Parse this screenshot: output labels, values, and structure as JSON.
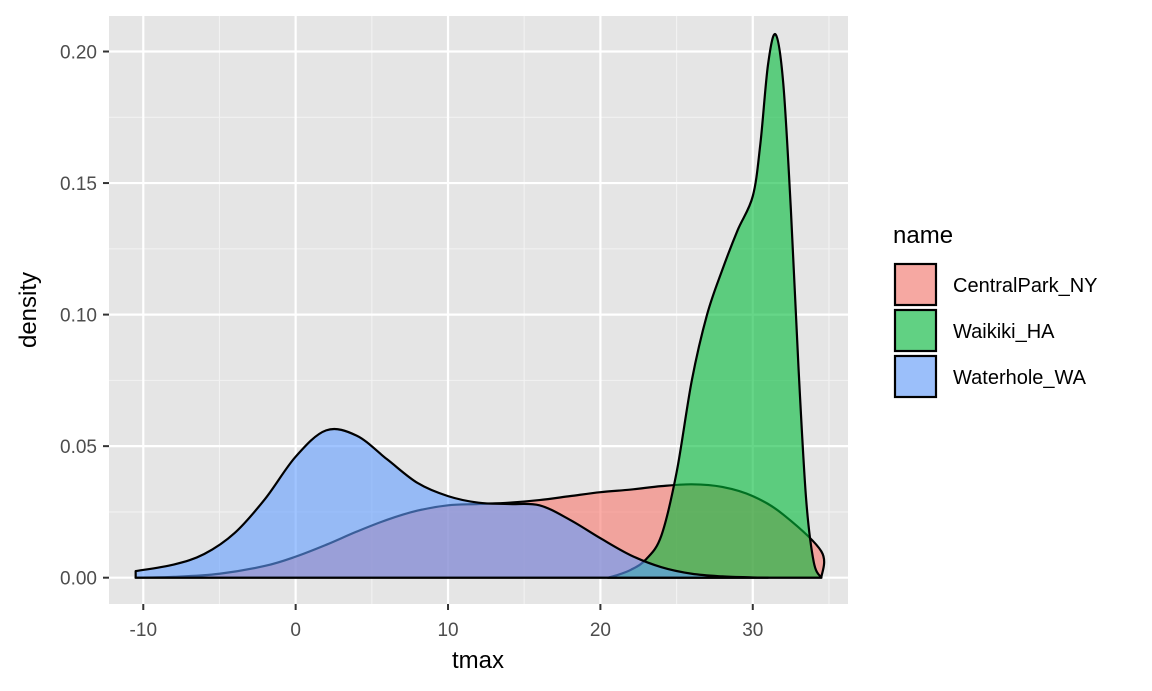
{
  "chart_data": {
    "type": "area",
    "subtype": "density",
    "xlabel": "tmax",
    "ylabel": "density",
    "xlim": [
      -12.25,
      36.25
    ],
    "ylim": [
      -0.01,
      0.2135
    ],
    "x_ticks": [
      -10,
      0,
      10,
      20,
      30
    ],
    "x_tick_labels": [
      "-10",
      "0",
      "10",
      "20",
      "30"
    ],
    "y_ticks": [
      0,
      0.05,
      0.1,
      0.15,
      0.2
    ],
    "y_tick_labels": [
      "0.00",
      "0.05",
      "0.10",
      "0.15",
      "0.20"
    ],
    "grid": true,
    "legend": {
      "title": "name",
      "position": "right"
    },
    "panel_background": "#e5e5e5",
    "series": [
      {
        "name": "CentralPark_NY",
        "color": "#f8766d",
        "points": [
          [
            -10.5,
            0.0
          ],
          [
            -8,
            0.0003
          ],
          [
            -5,
            0.0015
          ],
          [
            -2,
            0.0045
          ],
          [
            0,
            0.008
          ],
          [
            2,
            0.0125
          ],
          [
            4,
            0.0175
          ],
          [
            6,
            0.022
          ],
          [
            8,
            0.0255
          ],
          [
            10,
            0.0275
          ],
          [
            12,
            0.028
          ],
          [
            14,
            0.0285
          ],
          [
            16,
            0.0295
          ],
          [
            18,
            0.031
          ],
          [
            20,
            0.0325
          ],
          [
            22,
            0.0335
          ],
          [
            24,
            0.0348
          ],
          [
            26,
            0.0355
          ],
          [
            28,
            0.0345
          ],
          [
            30,
            0.031
          ],
          [
            32,
            0.024
          ],
          [
            34.5,
            0.01
          ],
          [
            34.5,
            0.0
          ]
        ]
      },
      {
        "name": "Waikiki_HA",
        "color": "#00ba38",
        "points": [
          [
            20.5,
            0.0
          ],
          [
            21,
            0.0008
          ],
          [
            22,
            0.003
          ],
          [
            23,
            0.007
          ],
          [
            24,
            0.016
          ],
          [
            25,
            0.04
          ],
          [
            26,
            0.075
          ],
          [
            27,
            0.1
          ],
          [
            28,
            0.117
          ],
          [
            29,
            0.132
          ],
          [
            30,
            0.145
          ],
          [
            30.5,
            0.165
          ],
          [
            31,
            0.195
          ],
          [
            31.5,
            0.2065
          ],
          [
            32,
            0.188
          ],
          [
            32.5,
            0.14
          ],
          [
            33,
            0.08
          ],
          [
            33.5,
            0.03
          ],
          [
            34,
            0.006
          ],
          [
            34.5,
            0.0
          ]
        ]
      },
      {
        "name": "Waterhole_WA",
        "color": "#619cff",
        "points": [
          [
            -10.5,
            0.0025
          ],
          [
            -8,
            0.005
          ],
          [
            -6,
            0.009
          ],
          [
            -4,
            0.017
          ],
          [
            -2,
            0.03
          ],
          [
            0,
            0.046
          ],
          [
            2,
            0.056
          ],
          [
            4,
            0.054
          ],
          [
            6,
            0.045
          ],
          [
            8,
            0.036
          ],
          [
            10,
            0.031
          ],
          [
            12,
            0.0285
          ],
          [
            14,
            0.028
          ],
          [
            16,
            0.0275
          ],
          [
            18,
            0.022
          ],
          [
            20,
            0.015
          ],
          [
            22,
            0.0085
          ],
          [
            24,
            0.004
          ],
          [
            26,
            0.0015
          ],
          [
            28,
            0.0005
          ],
          [
            30,
            0.0001
          ],
          [
            31,
            0.0
          ]
        ]
      }
    ]
  }
}
